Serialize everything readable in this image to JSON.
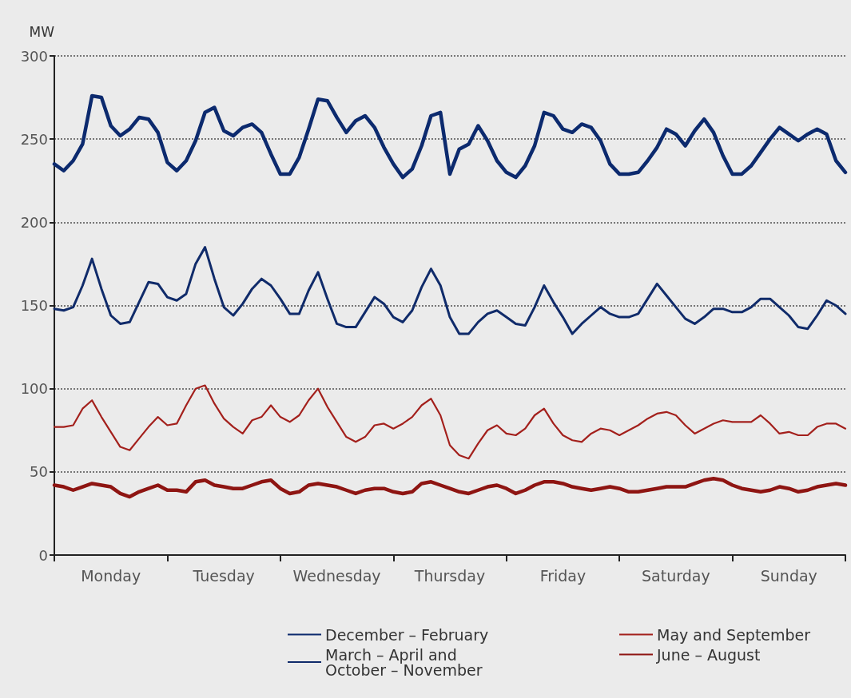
{
  "chart_data": {
    "type": "line",
    "ylabel": "MW",
    "ylim": [
      0,
      300
    ],
    "yticks": [
      0,
      50,
      100,
      150,
      200,
      250,
      300
    ],
    "categories": [
      null,
      null,
      null,
      null,
      null,
      null,
      "Monday",
      null,
      null,
      null,
      null,
      null,
      null,
      null,
      null,
      null,
      null,
      null,
      "Tuesday",
      null,
      null,
      null,
      null,
      null,
      null,
      null,
      null,
      null,
      null,
      null,
      "Wednesday",
      null,
      null,
      null,
      null,
      null,
      null,
      null,
      null,
      null,
      null,
      null,
      "Thursday",
      null,
      null,
      null,
      null,
      null,
      null,
      null,
      null,
      null,
      null,
      null,
      "Friday",
      null,
      null,
      null,
      null,
      null,
      null,
      null,
      null,
      null,
      null,
      null,
      "Saturday",
      null,
      null,
      null,
      null,
      null,
      null,
      null,
      null,
      null,
      null,
      null,
      "Sunday",
      null,
      null,
      null,
      null,
      null,
      null
    ],
    "grid": "y",
    "legend": "bottom",
    "marker": "none",
    "line_style": "solid",
    "series": [
      {
        "name": "December – February",
        "color": "#0c2a6e",
        "values": [
          235,
          231,
          237,
          247,
          276,
          275,
          258,
          252,
          256,
          263,
          262,
          254,
          236,
          231,
          237,
          249,
          266,
          269,
          255,
          252,
          257,
          259,
          254,
          241,
          229,
          229,
          239,
          256,
          274,
          273,
          263,
          254,
          261,
          264,
          257,
          245,
          235,
          227,
          232,
          246,
          264,
          266,
          229,
          244,
          247,
          258,
          249,
          237,
          230,
          227,
          234,
          246,
          266,
          264,
          256,
          254,
          259,
          257,
          249,
          235,
          229,
          229,
          230,
          237,
          245,
          256,
          253,
          246,
          255,
          262,
          254,
          240,
          229,
          229,
          234,
          242,
          250,
          257,
          253,
          249,
          253,
          256,
          253,
          237,
          230
        ]
      },
      {
        "name": "March – April and\nOctober – November",
        "color": "#102b6a",
        "values": [
          148,
          147,
          149,
          162,
          178,
          160,
          144,
          139,
          140,
          152,
          164,
          163,
          155,
          153,
          157,
          175,
          185,
          166,
          149,
          144,
          151,
          160,
          166,
          162,
          154,
          145,
          145,
          159,
          170,
          154,
          139,
          137,
          137,
          146,
          155,
          151,
          143,
          140,
          147,
          161,
          172,
          162,
          143,
          133,
          133,
          140,
          145,
          147,
          143,
          139,
          138,
          149,
          162,
          152,
          143,
          133,
          139,
          144,
          149,
          145,
          143,
          143,
          145,
          154,
          163,
          156,
          149,
          142,
          139,
          143,
          148,
          148,
          146,
          146,
          149,
          154,
          154,
          149,
          144,
          137,
          136,
          144,
          153,
          150,
          145
        ]
      },
      {
        "name": "May and September",
        "color": "#a3201c",
        "values": [
          77,
          77,
          78,
          88,
          93,
          83,
          74,
          65,
          63,
          70,
          77,
          83,
          78,
          79,
          90,
          100,
          102,
          91,
          82,
          77,
          73,
          81,
          83,
          90,
          83,
          80,
          84,
          93,
          100,
          89,
          80,
          71,
          68,
          71,
          78,
          79,
          76,
          79,
          83,
          90,
          94,
          84,
          66,
          60,
          58,
          67,
          75,
          78,
          73,
          72,
          76,
          84,
          88,
          79,
          72,
          69,
          68,
          73,
          76,
          75,
          72,
          75,
          78,
          82,
          85,
          86,
          84,
          78,
          73,
          76,
          79,
          81,
          80,
          80,
          80,
          84,
          79,
          73,
          74,
          72,
          72,
          77,
          79,
          79,
          76
        ]
      },
      {
        "name": "June – August",
        "color": "#8e1512",
        "values": [
          42,
          41,
          39,
          41,
          43,
          42,
          41,
          37,
          35,
          38,
          40,
          42,
          39,
          39,
          38,
          44,
          45,
          42,
          41,
          40,
          40,
          42,
          44,
          45,
          40,
          37,
          38,
          42,
          43,
          42,
          41,
          39,
          37,
          39,
          40,
          40,
          38,
          37,
          38,
          43,
          44,
          42,
          40,
          38,
          37,
          39,
          41,
          42,
          40,
          37,
          39,
          42,
          44,
          44,
          43,
          41,
          40,
          39,
          40,
          41,
          40,
          38,
          38,
          39,
          40,
          41,
          41,
          41,
          43,
          45,
          46,
          45,
          42,
          40,
          39,
          38,
          39,
          41,
          40,
          38,
          39,
          41,
          42,
          43,
          42
        ]
      }
    ]
  }
}
